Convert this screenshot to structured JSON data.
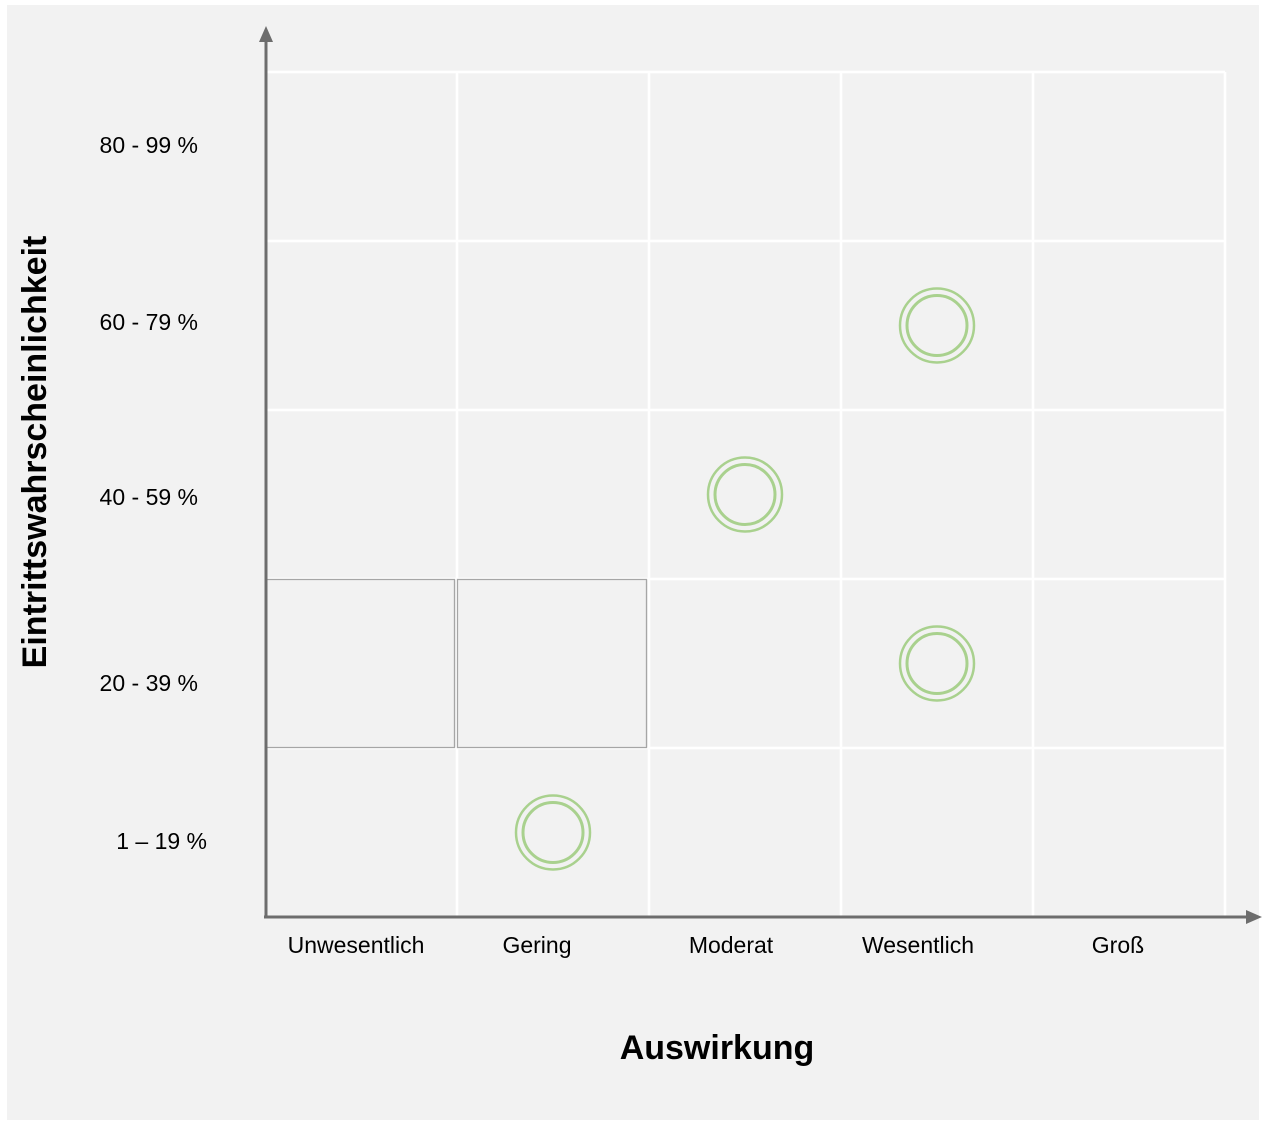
{
  "chart_data": {
    "type": "scatter",
    "xlabel": "Auswirkung",
    "ylabel": "Eintrittswahrscheinlichkeit",
    "x_categories": [
      "Unwesentlich",
      "Gering",
      "Moderat",
      "Wesentlich",
      "Groß"
    ],
    "y_categories": [
      "1 – 19 %",
      "20 - 39 %",
      "40 - 59 %",
      "60 - 79 %",
      "80 - 99 %"
    ],
    "points": [
      {
        "x": "Wesentlich",
        "y": "60 - 79 %"
      },
      {
        "x": "Moderat",
        "y": "40 - 59 %"
      },
      {
        "x": "Wesentlich",
        "y": "20 - 39 %"
      },
      {
        "x": "Gering",
        "y": "1 – 19 %"
      }
    ],
    "highlighted_cells": [
      {
        "x": "Unwesentlich",
        "y": "20 - 39 %"
      },
      {
        "x": "Gering",
        "y": "20 - 39 %"
      }
    ],
    "grid": true,
    "legend": "none",
    "colors": {
      "background": "#f2f2f2",
      "grid": "#ffffff",
      "axis": "#6d6d6d",
      "marker": "#a9d18e",
      "highlight_border": "#a6a6a6"
    }
  }
}
